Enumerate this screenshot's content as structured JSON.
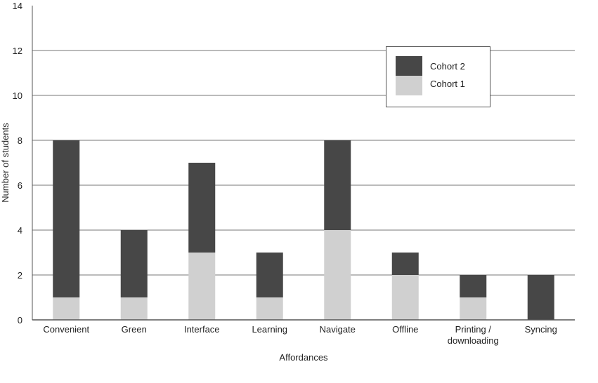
{
  "chart_data": {
    "type": "bar",
    "stacked": true,
    "title": "",
    "xlabel": "Affordances",
    "ylabel": "Number of students",
    "ylim": [
      0,
      14
    ],
    "yticks": [
      0,
      2,
      4,
      6,
      8,
      10,
      12,
      14
    ],
    "grid": true,
    "legend_position": "top-right",
    "categories": [
      "Convenient",
      "Green",
      "Interface",
      "Learning",
      "Navigate",
      "Offline",
      "Printing / downloading",
      "Syncing"
    ],
    "category_lines": [
      [
        "Convenient"
      ],
      [
        "Green"
      ],
      [
        "Interface"
      ],
      [
        "Learning"
      ],
      [
        "Navigate"
      ],
      [
        "Offline"
      ],
      [
        "Printing /",
        "downloading"
      ],
      [
        "Syncing"
      ]
    ],
    "series": [
      {
        "name": "Cohort 1",
        "color": "#d0d0d0",
        "values": [
          1,
          1,
          3,
          1,
          4,
          2,
          1,
          0
        ]
      },
      {
        "name": "Cohort 2",
        "color": "#474747",
        "values": [
          7,
          3,
          4,
          2,
          4,
          1,
          1,
          2
        ]
      }
    ],
    "legend_order": [
      "Cohort 2",
      "Cohort 1"
    ]
  }
}
